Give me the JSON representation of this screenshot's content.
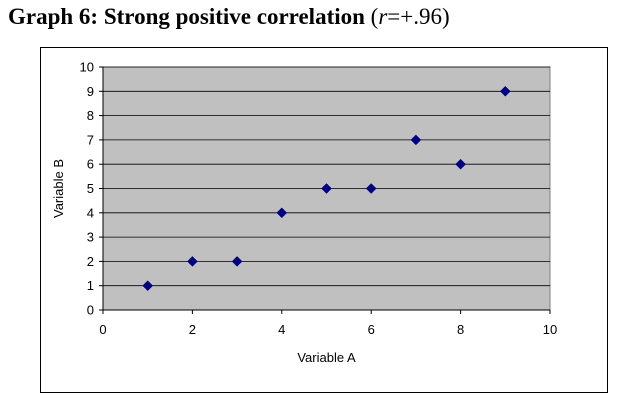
{
  "header": {
    "title_main": "Graph 6: Strong positive correlation",
    "stat_open": "(",
    "stat_var": "r",
    "stat_value": "=+.96)"
  },
  "chart_data": {
    "type": "scatter",
    "xlabel": "Variable A",
    "ylabel": "Variable B",
    "xlim": [
      0,
      10
    ],
    "ylim": [
      0,
      10
    ],
    "x_ticks": [
      0,
      2,
      4,
      6,
      8,
      10
    ],
    "y_ticks": [
      0,
      1,
      2,
      3,
      4,
      5,
      6,
      7,
      8,
      9,
      10
    ],
    "grid": "horizontal",
    "points": [
      {
        "x": 1,
        "y": 1
      },
      {
        "x": 2,
        "y": 2
      },
      {
        "x": 3,
        "y": 2
      },
      {
        "x": 4,
        "y": 4
      },
      {
        "x": 5,
        "y": 5
      },
      {
        "x": 6,
        "y": 5
      },
      {
        "x": 7,
        "y": 7
      },
      {
        "x": 8,
        "y": 6
      },
      {
        "x": 9,
        "y": 9
      }
    ],
    "colors": {
      "plot_background": "#c0c0c0",
      "marker": "#000080",
      "gridline": "#000000"
    },
    "marker_shape": "diamond"
  }
}
